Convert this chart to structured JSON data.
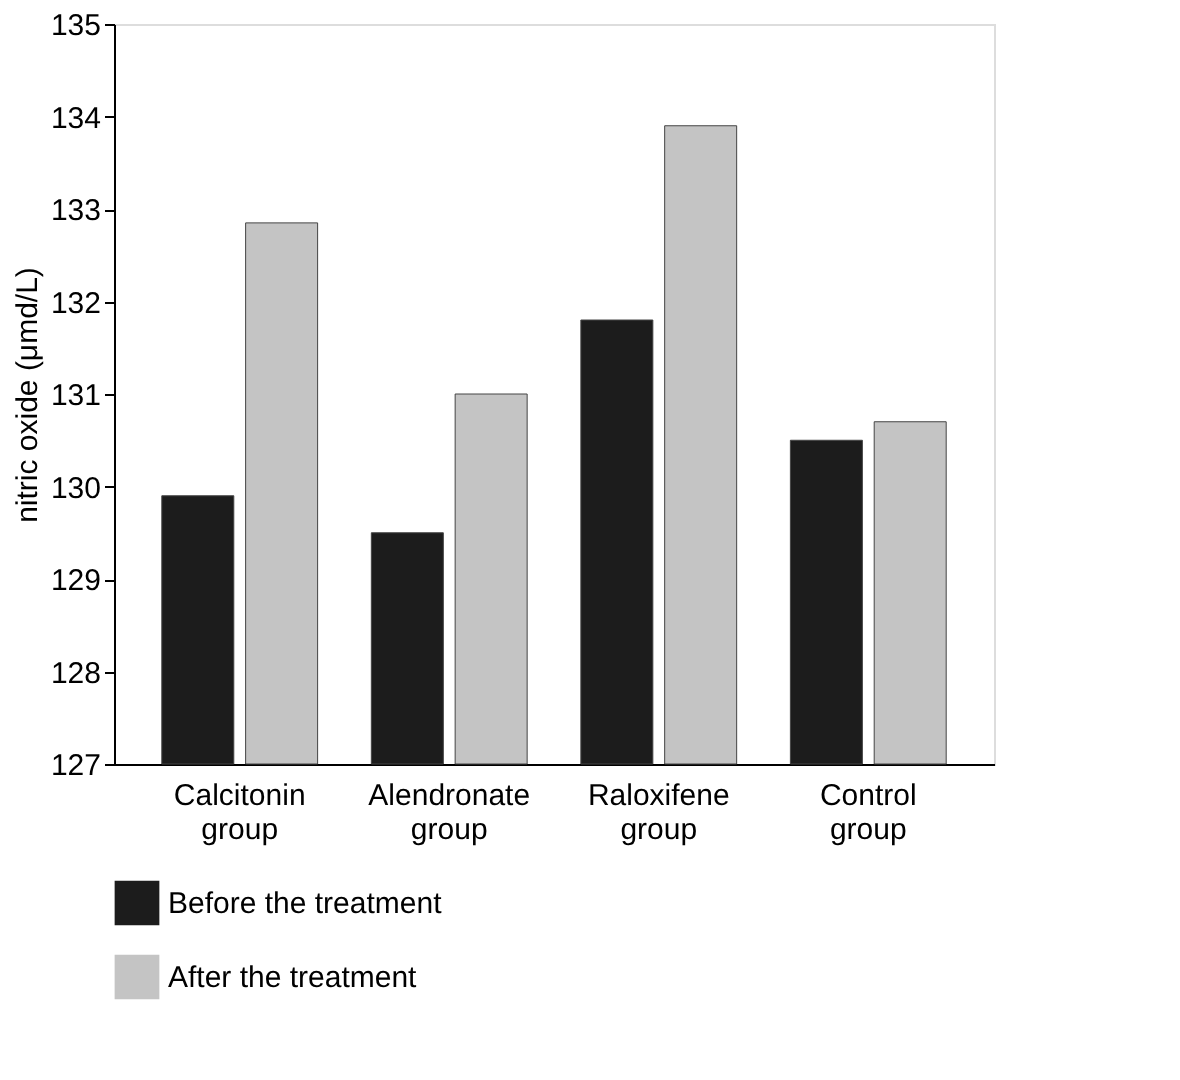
{
  "chart_data": {
    "type": "bar",
    "ylabel": "nitric oxide (μmd/L)",
    "categories": [
      "Calcitonin group",
      "Alendronate group",
      "Raloxifene group",
      "Control group"
    ],
    "series": [
      {
        "name": "Before  the treatment",
        "color": "#1c1c1c",
        "values": [
          129.9,
          129.5,
          131.8,
          130.5
        ]
      },
      {
        "name": "After the treatment",
        "color": "#c4c4c4",
        "values": [
          132.85,
          131.0,
          133.9,
          130.7
        ]
      }
    ],
    "ylim": [
      127,
      135
    ],
    "yticks": [
      127,
      128,
      129,
      130,
      131,
      132,
      133,
      134,
      135
    ],
    "grid": false,
    "legend": "bottom left"
  }
}
